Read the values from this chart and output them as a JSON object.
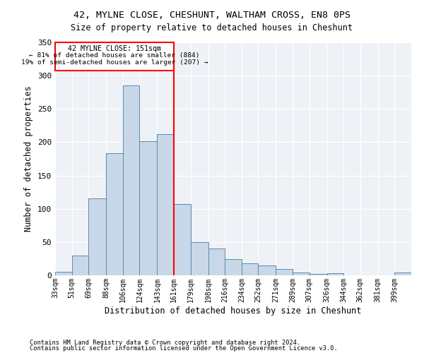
{
  "title1": "42, MYLNE CLOSE, CHESHUNT, WALTHAM CROSS, EN8 0PS",
  "title2": "Size of property relative to detached houses in Cheshunt",
  "xlabel": "Distribution of detached houses by size in Cheshunt",
  "ylabel": "Number of detached properties",
  "bin_labels": [
    "33sqm",
    "51sqm",
    "69sqm",
    "88sqm",
    "106sqm",
    "124sqm",
    "143sqm",
    "161sqm",
    "179sqm",
    "198sqm",
    "216sqm",
    "234sqm",
    "252sqm",
    "271sqm",
    "289sqm",
    "307sqm",
    "326sqm",
    "344sqm",
    "362sqm",
    "381sqm",
    "399sqm"
  ],
  "bar_heights": [
    5,
    30,
    116,
    184,
    285,
    202,
    212,
    107,
    50,
    40,
    24,
    18,
    15,
    10,
    4,
    2,
    3,
    0,
    0,
    0,
    4
  ],
  "bar_color": "#c8d8e8",
  "bar_edge_color": "#5a8ab0",
  "annotation_title": "42 MYLNE CLOSE: 151sqm",
  "annotation_line1": "← 81% of detached houses are smaller (884)",
  "annotation_line2": "19% of semi-detached houses are larger (207) →",
  "vline_x": 161,
  "ylim": [
    0,
    350
  ],
  "yticks": [
    0,
    50,
    100,
    150,
    200,
    250,
    300,
    350
  ],
  "footnote1": "Contains HM Land Registry data © Crown copyright and database right 2024.",
  "footnote2": "Contains public sector information licensed under the Open Government Licence v3.0.",
  "bg_color": "#eef2f7"
}
